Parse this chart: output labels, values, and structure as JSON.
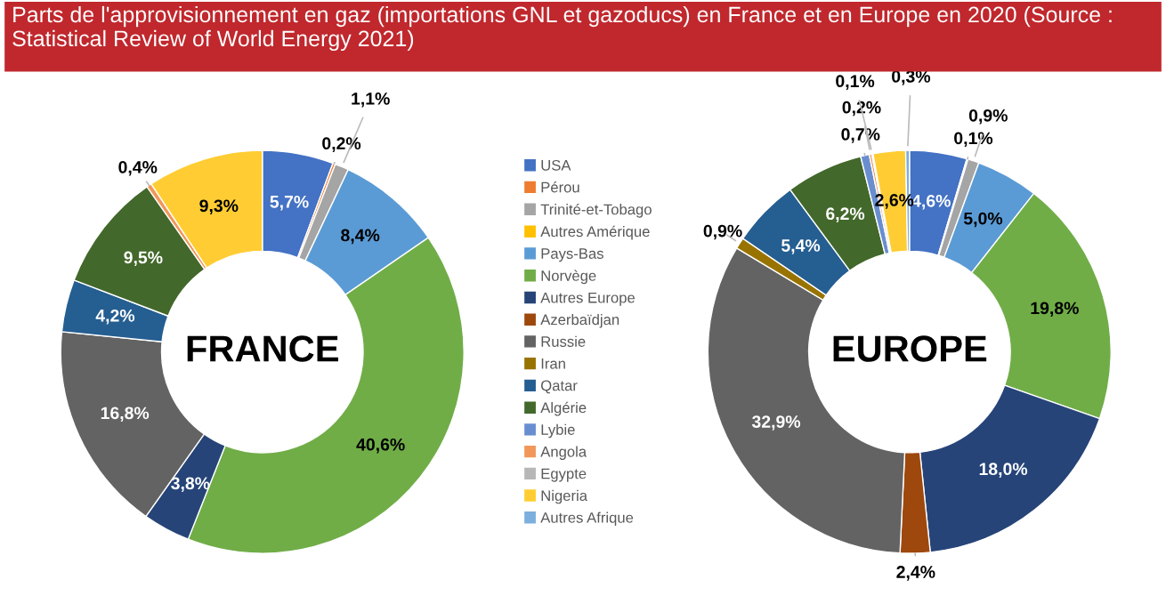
{
  "chart_data": [
    {
      "type": "donut",
      "subtitle": "Parts de l'approvisionnement en gaz (importations GNL et gazoducs) en France et en Europe en 2020 (Source : Statistical Review of World Energy 2021)",
      "title": "FRANCE",
      "legend": "right",
      "categories": [
        "USA",
        "Pérou",
        "Trinité-et-Tobago",
        "Autres Amérique",
        "Pays-Bas",
        "Norvège",
        "Autres Europe",
        "Azerbaïdjan",
        "Russie",
        "Iran",
        "Qatar",
        "Algérie",
        "Lybie",
        "Angola",
        "Egypte",
        "Nigeria",
        "Autres Afrique"
      ],
      "colors": [
        "#4472c4",
        "#ed7d31",
        "#a5a5a5",
        "#ffc000",
        "#5b9bd5",
        "#70ad47",
        "#264478",
        "#9e480e",
        "#636363",
        "#997300",
        "#255e91",
        "#43682b",
        "#698ed0",
        "#f1975a",
        "#b7b7b7",
        "#ffcd33",
        "#7cafdd"
      ],
      "values": [
        5.7,
        0.2,
        1.1,
        0,
        8.4,
        40.6,
        3.8,
        0,
        16.8,
        0,
        4.2,
        9.5,
        0,
        0.4,
        0,
        9.3,
        0
      ],
      "value_labels": [
        "5,7%",
        "0,2%",
        "1,1%",
        null,
        "8,4%",
        "40,6%",
        "3,8%",
        null,
        "16,8%",
        null,
        "4,2%",
        "9,5%",
        null,
        "0,4%",
        null,
        "9,3%",
        null
      ]
    },
    {
      "type": "donut",
      "title": "EUROPE",
      "categories": [
        null,
        null,
        null,
        null,
        null,
        null,
        null,
        null,
        null,
        null,
        null,
        null,
        null,
        null,
        null,
        null,
        null
      ],
      "colors": [
        "#4472c4",
        "#ed7d31",
        "#a5a5a5",
        "#ffc000",
        "#5b9bd5",
        "#70ad47",
        "#264478",
        "#9e480e",
        "#636363",
        "#997300",
        "#255e91",
        "#43682b",
        "#698ed0",
        "#f1975a",
        "#b7b7b7",
        "#ffcd33",
        "#7cafdd"
      ],
      "values": [
        4.6,
        0.1,
        0.9,
        0,
        5.0,
        19.8,
        18.0,
        2.4,
        32.9,
        0.9,
        5.4,
        6.2,
        0.7,
        0.2,
        0.1,
        2.6,
        0.3
      ],
      "value_labels": [
        "4,6%",
        "0,1%",
        "0,9%",
        null,
        "5,0%",
        "19,8%",
        "18,0%",
        "2,4%",
        "32,9%",
        "0,9%",
        "5,4%",
        "6,2%",
        "0,7%",
        "0,2%",
        "0,1%",
        "2,6%",
        "0,3%"
      ]
    }
  ]
}
